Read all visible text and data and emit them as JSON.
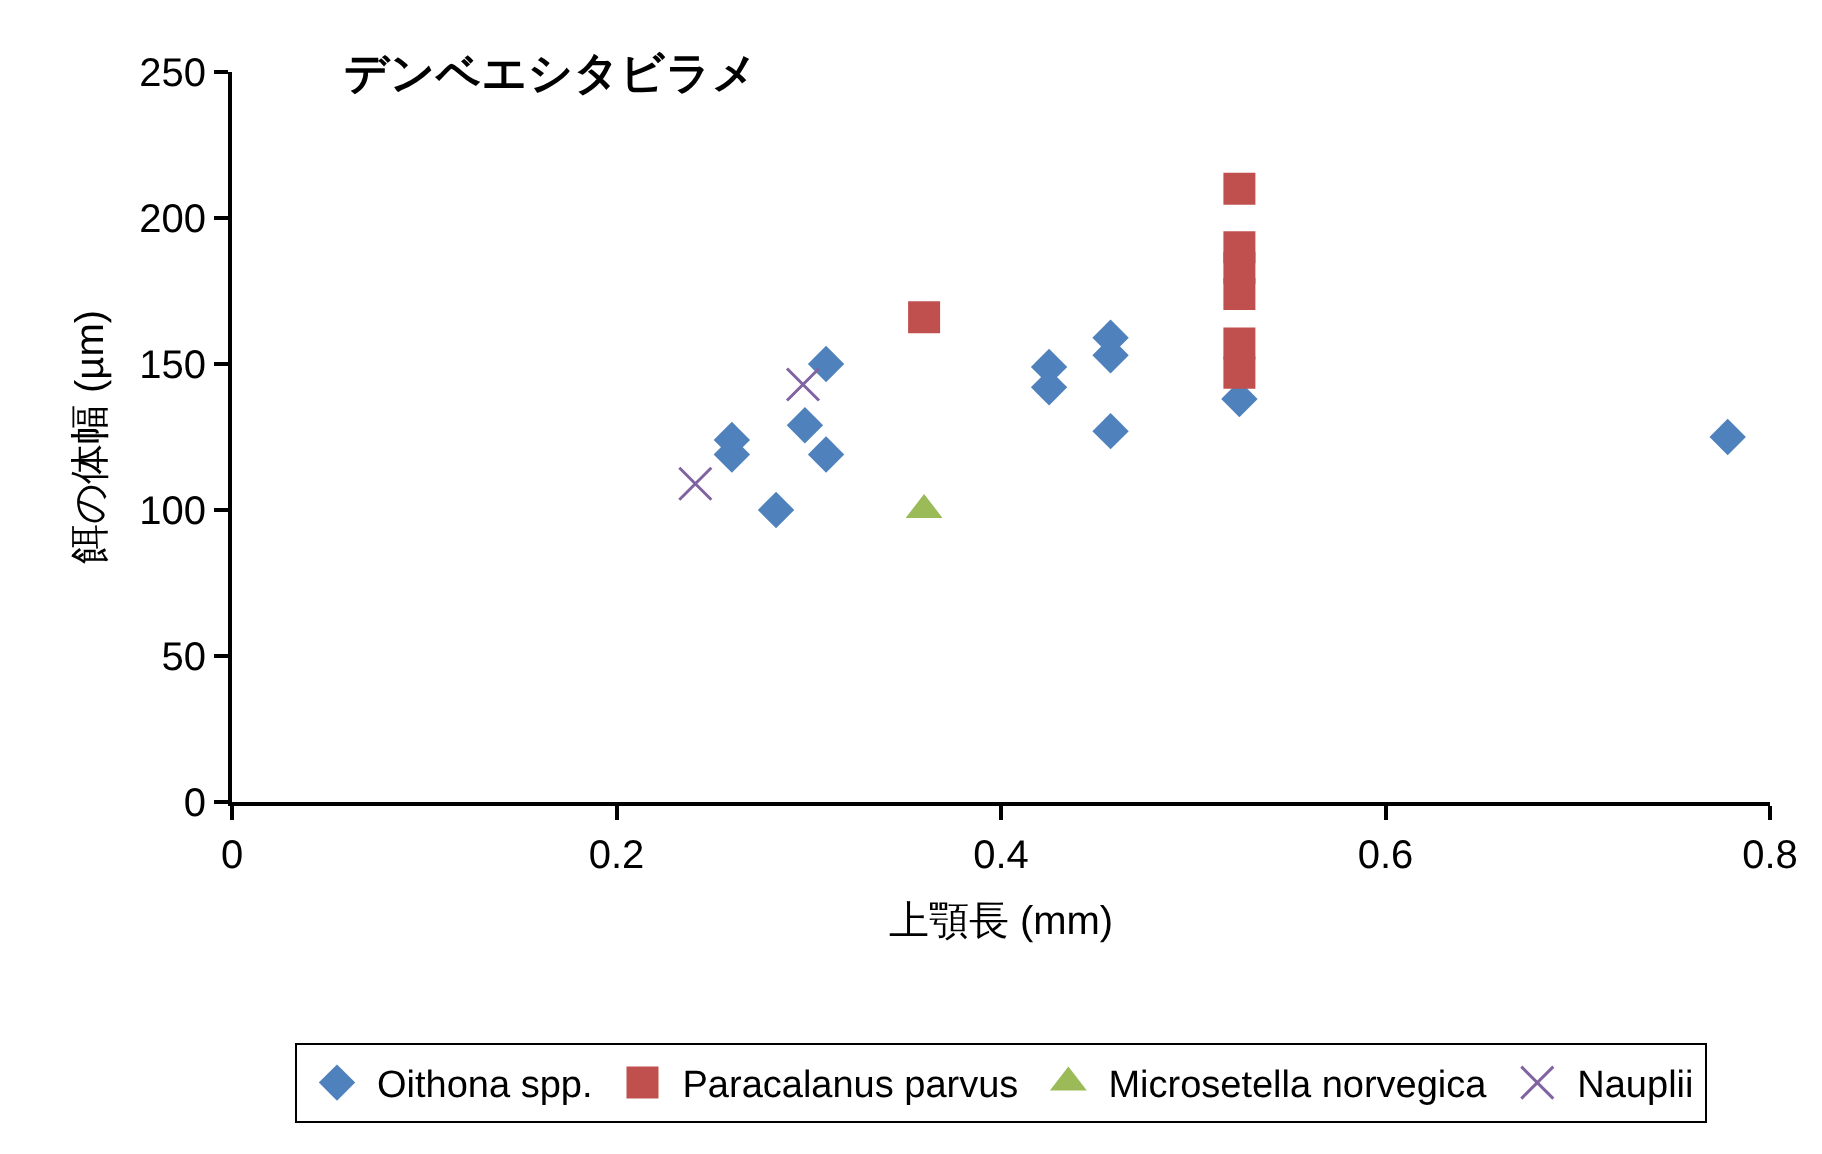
{
  "chart_data": {
    "type": "scatter",
    "title": "デンベエシタビラメ",
    "xlabel": "上顎長 (mm)",
    "ylabel": "餌の体幅 (µm)",
    "xlim": [
      0,
      0.8
    ],
    "xticks": [
      0,
      0.2,
      0.4,
      0.6,
      0.8
    ],
    "ylim": [
      0,
      250
    ],
    "yticks": [
      0,
      50,
      100,
      150,
      200,
      250
    ],
    "legend": "bottom",
    "series": [
      {
        "name": "Oithona spp.",
        "color": "#4f81bd",
        "marker": "diamond",
        "x": [
          0.26,
          0.26,
          0.283,
          0.298,
          0.309,
          0.309,
          0.425,
          0.425,
          0.457,
          0.457,
          0.457,
          0.524,
          0.778
        ],
        "values": [
          124,
          119,
          100,
          129,
          150,
          119,
          149,
          142,
          159,
          153,
          127,
          138,
          125
        ]
      },
      {
        "name": "Paracalanus parvus",
        "color": "#c0504d",
        "marker": "square",
        "x": [
          0.36,
          0.524,
          0.524,
          0.524,
          0.524,
          0.524,
          0.524
        ],
        "values": [
          166,
          210,
          190,
          183,
          174,
          157,
          147
        ]
      },
      {
        "name": "Microsetella norvegica",
        "color": "#9bbb59",
        "marker": "triangle",
        "x": [
          0.36
        ],
        "values": [
          100
        ]
      },
      {
        "name": "Nauplii",
        "color": "#8064a2",
        "marker": "cross",
        "x": [
          0.241,
          0.297
        ],
        "values": [
          109,
          143
        ]
      }
    ]
  }
}
